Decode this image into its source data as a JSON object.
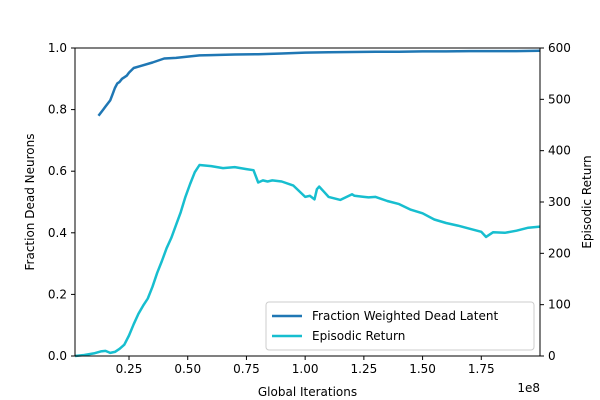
{
  "chart_data": {
    "type": "line",
    "xlabel": "Global Iterations",
    "x_offset_text": "1e8",
    "x_ticks": [
      0.25,
      0.5,
      0.75,
      1.0,
      1.25,
      1.5,
      1.75
    ],
    "x_tick_labels": [
      "0.25",
      "0.50",
      "0.75",
      "1.00",
      "1.25",
      "1.50",
      "1.75"
    ],
    "xlim": [
      0.02,
      2.0
    ],
    "left_axis": {
      "label": "Fraction Dead Neurons",
      "ylim": [
        0.0,
        1.0
      ],
      "ticks": [
        0.0,
        0.2,
        0.4,
        0.6,
        0.8,
        1.0
      ],
      "tick_labels": [
        "0.0",
        "0.2",
        "0.4",
        "0.6",
        "0.8",
        "1.0"
      ]
    },
    "right_axis": {
      "label": "Episodic Return",
      "ylim": [
        0,
        600
      ],
      "ticks": [
        0,
        100,
        200,
        300,
        400,
        500,
        600
      ],
      "tick_labels": [
        "0",
        "100",
        "200",
        "300",
        "400",
        "500",
        "600"
      ]
    },
    "legend_placement": "lower-right",
    "series": [
      {
        "name": "Fraction Weighted Dead Latent",
        "axis": "left",
        "color": "#1f77b4",
        "x": [
          0.12,
          0.13,
          0.14,
          0.15,
          0.16,
          0.17,
          0.18,
          0.19,
          0.2,
          0.21,
          0.22,
          0.23,
          0.24,
          0.25,
          0.27,
          0.3,
          0.35,
          0.4,
          0.45,
          0.5,
          0.55,
          0.6,
          0.7,
          0.8,
          0.9,
          1.0,
          1.1,
          1.2,
          1.3,
          1.4,
          1.5,
          1.6,
          1.7,
          1.8,
          1.9,
          2.0
        ],
        "y": [
          0.78,
          0.79,
          0.8,
          0.81,
          0.82,
          0.83,
          0.85,
          0.87,
          0.885,
          0.89,
          0.9,
          0.905,
          0.91,
          0.92,
          0.935,
          0.942,
          0.953,
          0.966,
          0.968,
          0.972,
          0.976,
          0.977,
          0.979,
          0.98,
          0.982,
          0.985,
          0.986,
          0.987,
          0.988,
          0.988,
          0.989,
          0.989,
          0.99,
          0.99,
          0.99,
          0.991
        ]
      },
      {
        "name": "Episodic Return",
        "axis": "right",
        "color": "#17becf",
        "x": [
          0.02,
          0.06,
          0.1,
          0.13,
          0.15,
          0.17,
          0.19,
          0.21,
          0.23,
          0.25,
          0.27,
          0.29,
          0.31,
          0.33,
          0.35,
          0.37,
          0.39,
          0.41,
          0.43,
          0.45,
          0.47,
          0.49,
          0.51,
          0.53,
          0.55,
          0.6,
          0.65,
          0.7,
          0.75,
          0.78,
          0.8,
          0.82,
          0.84,
          0.86,
          0.9,
          0.95,
          1.0,
          1.02,
          1.04,
          1.05,
          1.06,
          1.08,
          1.1,
          1.15,
          1.2,
          1.21,
          1.25,
          1.27,
          1.3,
          1.35,
          1.4,
          1.45,
          1.5,
          1.55,
          1.6,
          1.65,
          1.7,
          1.75,
          1.77,
          1.8,
          1.85,
          1.9,
          1.95,
          2.0
        ],
        "y": [
          0,
          2,
          5,
          9,
          10,
          6,
          8,
          14,
          22,
          40,
          62,
          82,
          98,
          112,
          135,
          162,
          185,
          210,
          230,
          255,
          280,
          310,
          335,
          358,
          372,
          370,
          366,
          368,
          364,
          362,
          338,
          342,
          340,
          342,
          340,
          332,
          310,
          312,
          305,
          325,
          330,
          320,
          310,
          304,
          315,
          312,
          310,
          309,
          310,
          302,
          296,
          285,
          278,
          266,
          259,
          254,
          248,
          242,
          232,
          241,
          240,
          244,
          250,
          252
        ]
      }
    ]
  }
}
